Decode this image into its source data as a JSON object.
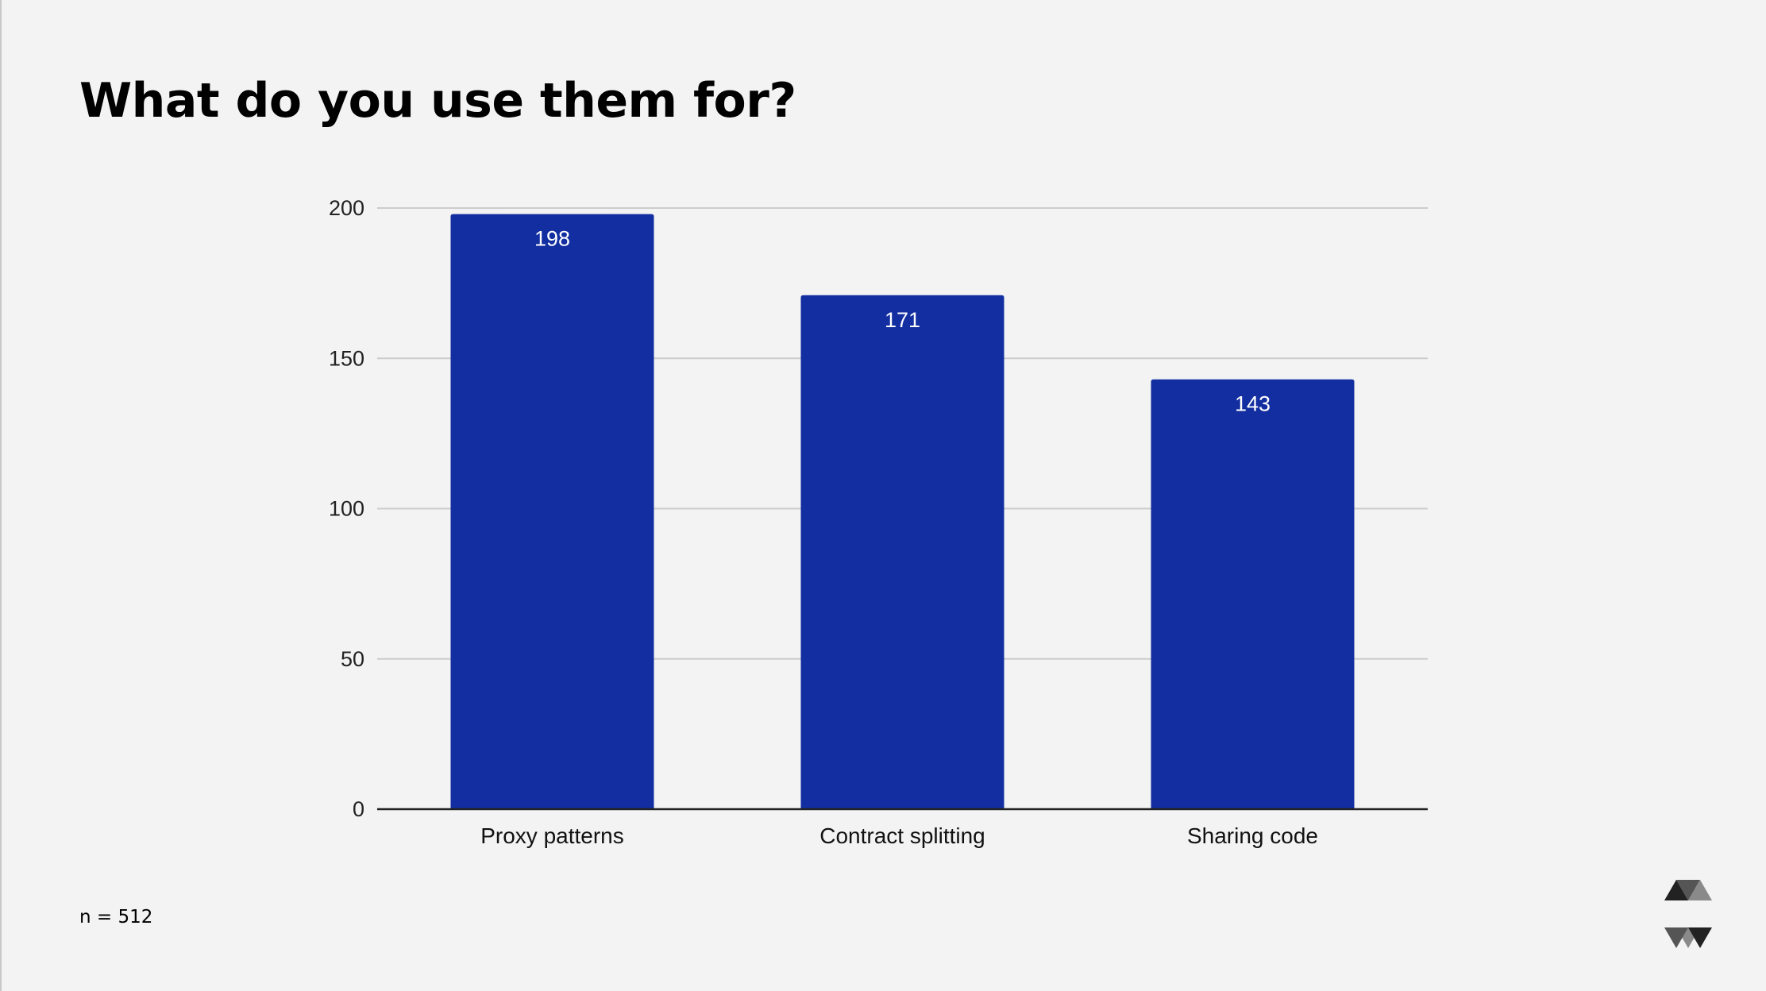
{
  "slide": {
    "title": "What do you use them for?",
    "footnote": "n = 512"
  },
  "colors": {
    "bar": "#122ea0",
    "background": "#f3f3f3",
    "grid": "#cccccc",
    "axis": "#222222",
    "bar_label": "#ffffff"
  },
  "logo": {
    "icon": "solidity-logo-icon"
  },
  "chart_data": {
    "type": "bar",
    "categories": [
      "Proxy patterns",
      "Contract splitting",
      "Sharing code"
    ],
    "values": [
      198,
      171,
      143
    ],
    "data_labels": [
      "198",
      "171",
      "143"
    ],
    "title": "",
    "xlabel": "",
    "ylabel": "",
    "ylim": [
      0,
      200
    ],
    "yticks": [
      0,
      50,
      100,
      150,
      200
    ],
    "ytick_labels": [
      "0",
      "50",
      "100",
      "150",
      "200"
    ],
    "grid": true,
    "legend": "none"
  }
}
